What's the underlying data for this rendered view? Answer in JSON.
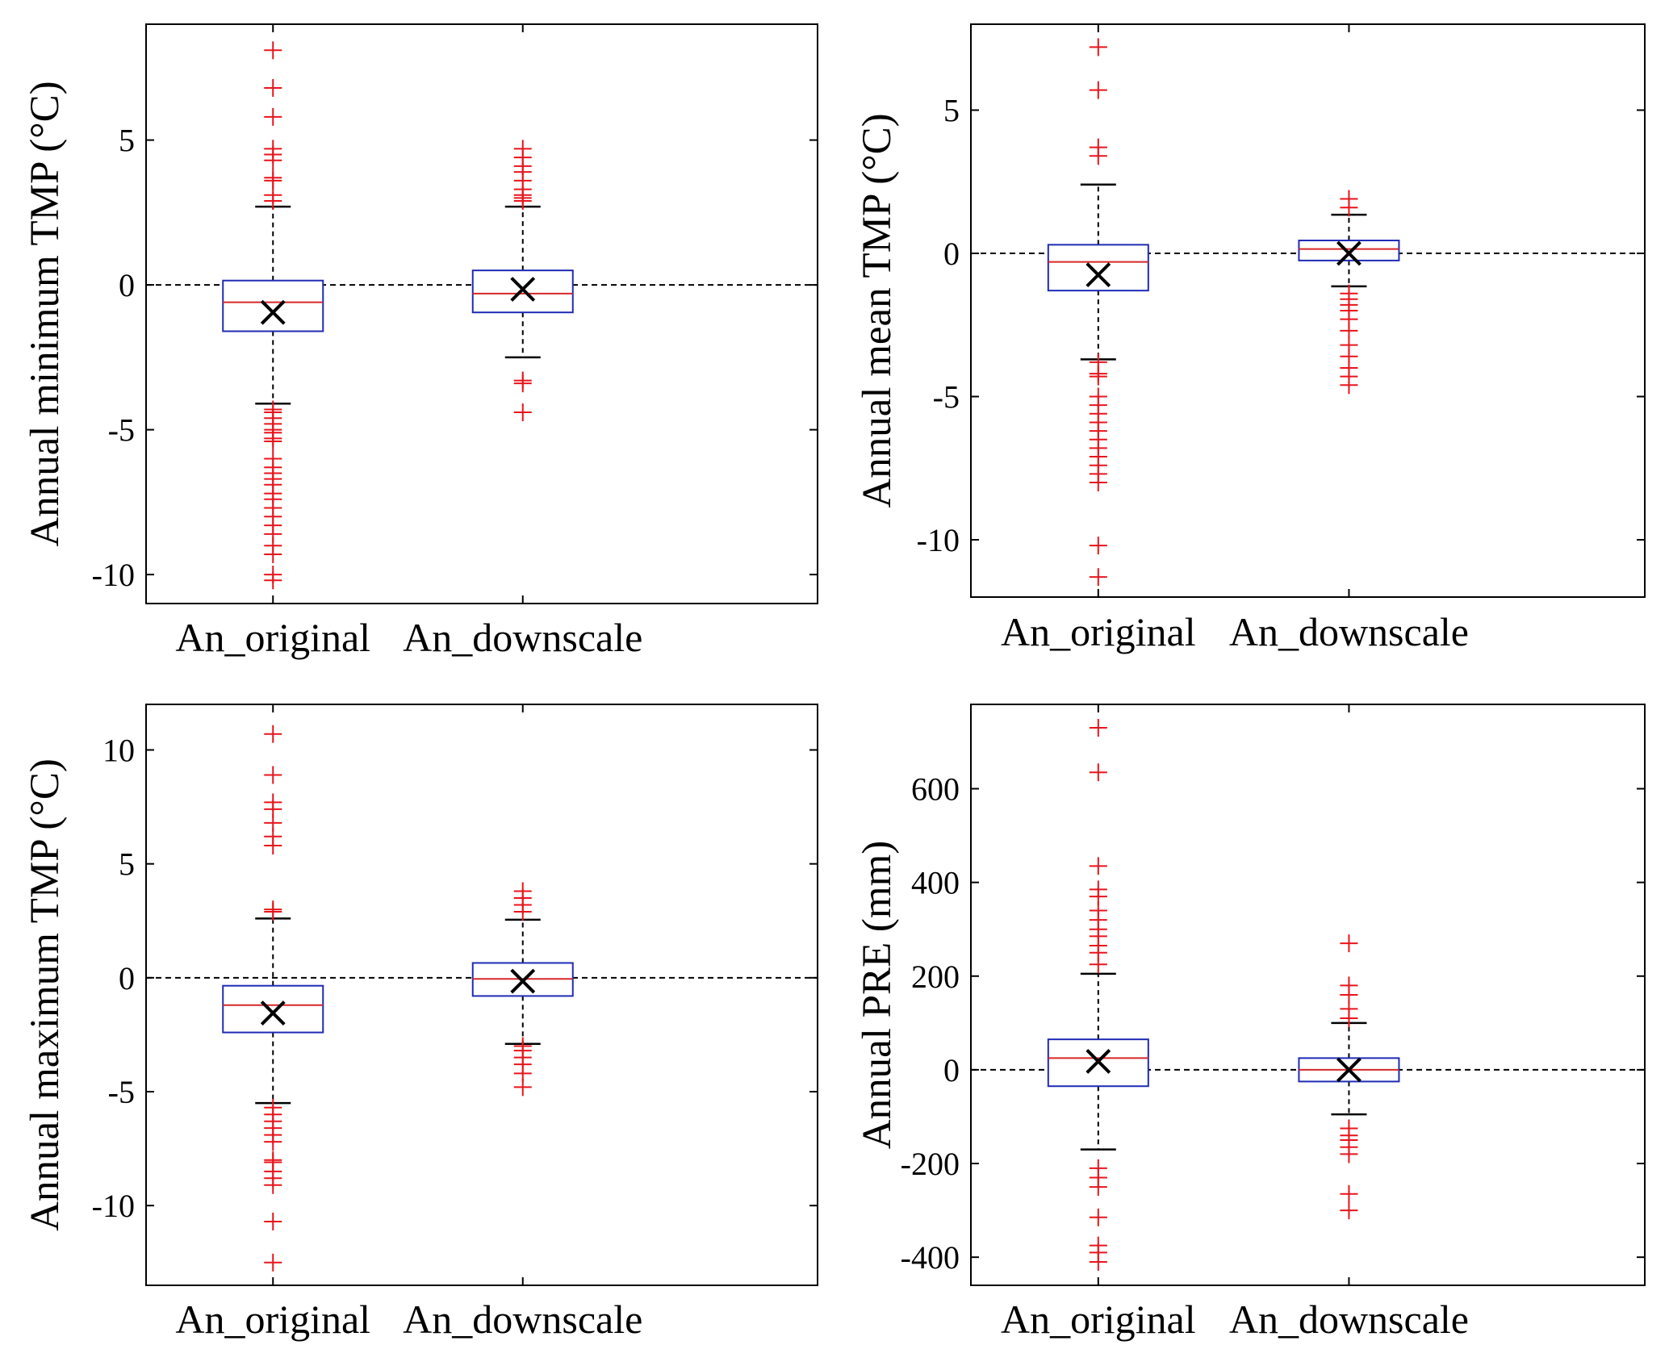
{
  "chart_data": [
    {
      "type": "box",
      "panel": "top-left",
      "ylabel": "Annual minimum TMP (°C)",
      "ylim": [
        -11,
        9
      ],
      "yticks": [
        -10,
        -5,
        0,
        5
      ],
      "ytick_labels": [
        "-10",
        "-5",
        "0",
        "5"
      ],
      "categories": [
        "An_original",
        "An_downscale"
      ],
      "reference_line": 0,
      "boxes": [
        {
          "name": "An_original",
          "q1": -1.6,
          "median": -0.6,
          "q3": 0.15,
          "whisker_low": -4.1,
          "whisker_high": 2.7,
          "mean": -0.95,
          "outliers": [
            8.1,
            6.8,
            5.8,
            4.7,
            4.5,
            4.3,
            3.7,
            3.6,
            3.1,
            2.9,
            -4.3,
            -4.4,
            -4.6,
            -4.8,
            -5.0,
            -5.1,
            -5.3,
            -5.4,
            -6.0,
            -6.3,
            -6.5,
            -6.7,
            -6.9,
            -7.2,
            -7.4,
            -7.7,
            -8.0,
            -8.3,
            -8.6,
            -9.0,
            -9.3,
            -10.0,
            -10.2
          ]
        },
        {
          "name": "An_downscale",
          "q1": -0.95,
          "median": -0.3,
          "q3": 0.5,
          "whisker_low": -2.5,
          "whisker_high": 2.7,
          "mean": -0.15,
          "outliers": [
            4.7,
            4.4,
            4.1,
            3.9,
            3.6,
            3.3,
            3.1,
            3.0,
            2.9,
            -3.3,
            -3.4,
            -4.4
          ]
        }
      ]
    },
    {
      "type": "box",
      "panel": "top-right",
      "ylabel": "Annual mean TMP (°C)",
      "ylim": [
        -12,
        8
      ],
      "yticks": [
        -10,
        -5,
        0,
        5
      ],
      "ytick_labels": [
        "-10",
        "-5",
        "0",
        "5"
      ],
      "categories": [
        "An_original",
        "An_downscale"
      ],
      "reference_line": 0,
      "boxes": [
        {
          "name": "An_original",
          "q1": -1.3,
          "median": -0.3,
          "q3": 0.3,
          "whisker_low": -3.7,
          "whisker_high": 2.4,
          "mean": -0.75,
          "outliers": [
            7.2,
            5.7,
            3.7,
            3.4,
            -3.8,
            -4.2,
            -4.3,
            -5.0,
            -5.3,
            -5.6,
            -5.9,
            -6.2,
            -6.5,
            -6.8,
            -7.1,
            -7.4,
            -7.7,
            -8.0,
            -10.2,
            -11.3
          ]
        },
        {
          "name": "An_downscale",
          "q1": -0.25,
          "median": 0.15,
          "q3": 0.45,
          "whisker_low": -1.15,
          "whisker_high": 1.35,
          "mean": 0.0,
          "outliers": [
            1.9,
            1.6,
            -1.4,
            -1.6,
            -1.8,
            -2.0,
            -2.3,
            -2.7,
            -3.2,
            -3.6,
            -4.0,
            -4.3,
            -4.6
          ]
        }
      ]
    },
    {
      "type": "box",
      "panel": "bottom-left",
      "ylabel": "Annual maximum TMP (°C)",
      "ylim": [
        -13.5,
        12
      ],
      "yticks": [
        -10,
        -5,
        0,
        5,
        10
      ],
      "ytick_labels": [
        "-10",
        "-5",
        "0",
        "5",
        "10"
      ],
      "categories": [
        "An_original",
        "An_downscale"
      ],
      "reference_line": 0,
      "boxes": [
        {
          "name": "An_original",
          "q1": -2.4,
          "median": -1.2,
          "q3": -0.35,
          "whisker_low": -5.5,
          "whisker_high": 2.6,
          "mean": -1.55,
          "outliers": [
            10.7,
            8.9,
            7.7,
            7.4,
            6.8,
            6.2,
            5.8,
            3.0,
            2.9,
            -5.7,
            -6.0,
            -6.3,
            -6.6,
            -6.9,
            -7.2,
            -8.0,
            -8.1,
            -8.5,
            -8.8,
            -9.1,
            -10.7,
            -12.5
          ]
        },
        {
          "name": "An_downscale",
          "q1": -0.8,
          "median": -0.05,
          "q3": 0.65,
          "whisker_low": -2.9,
          "whisker_high": 2.55,
          "mean": -0.15,
          "outliers": [
            3.8,
            3.5,
            3.2,
            2.9,
            -3.0,
            -3.2,
            -3.5,
            -3.8,
            -4.2,
            -4.8
          ]
        }
      ]
    },
    {
      "type": "box",
      "panel": "bottom-right",
      "ylabel": "Annual PRE (mm)",
      "ylim": [
        -460,
        780
      ],
      "yticks": [
        -400,
        -200,
        0,
        200,
        400,
        600
      ],
      "ytick_labels": [
        "-400",
        "-200",
        "0",
        "200",
        "400",
        "600"
      ],
      "categories": [
        "An_original",
        "An_downscale"
      ],
      "reference_line": 0,
      "boxes": [
        {
          "name": "An_original",
          "q1": -35,
          "median": 25,
          "q3": 65,
          "whisker_low": -170,
          "whisker_high": 205,
          "mean": 18,
          "outliers": [
            730,
            635,
            435,
            385,
            370,
            340,
            320,
            300,
            285,
            265,
            250,
            225,
            -210,
            -230,
            -250,
            -315,
            -375,
            -390,
            -410
          ]
        },
        {
          "name": "An_downscale",
          "q1": -25,
          "median": 0,
          "q3": 25,
          "whisker_low": -95,
          "whisker_high": 100,
          "mean": 0,
          "outliers": [
            270,
            180,
            160,
            130,
            110,
            -125,
            -140,
            -150,
            -165,
            -180,
            -265,
            -300
          ]
        }
      ]
    }
  ]
}
